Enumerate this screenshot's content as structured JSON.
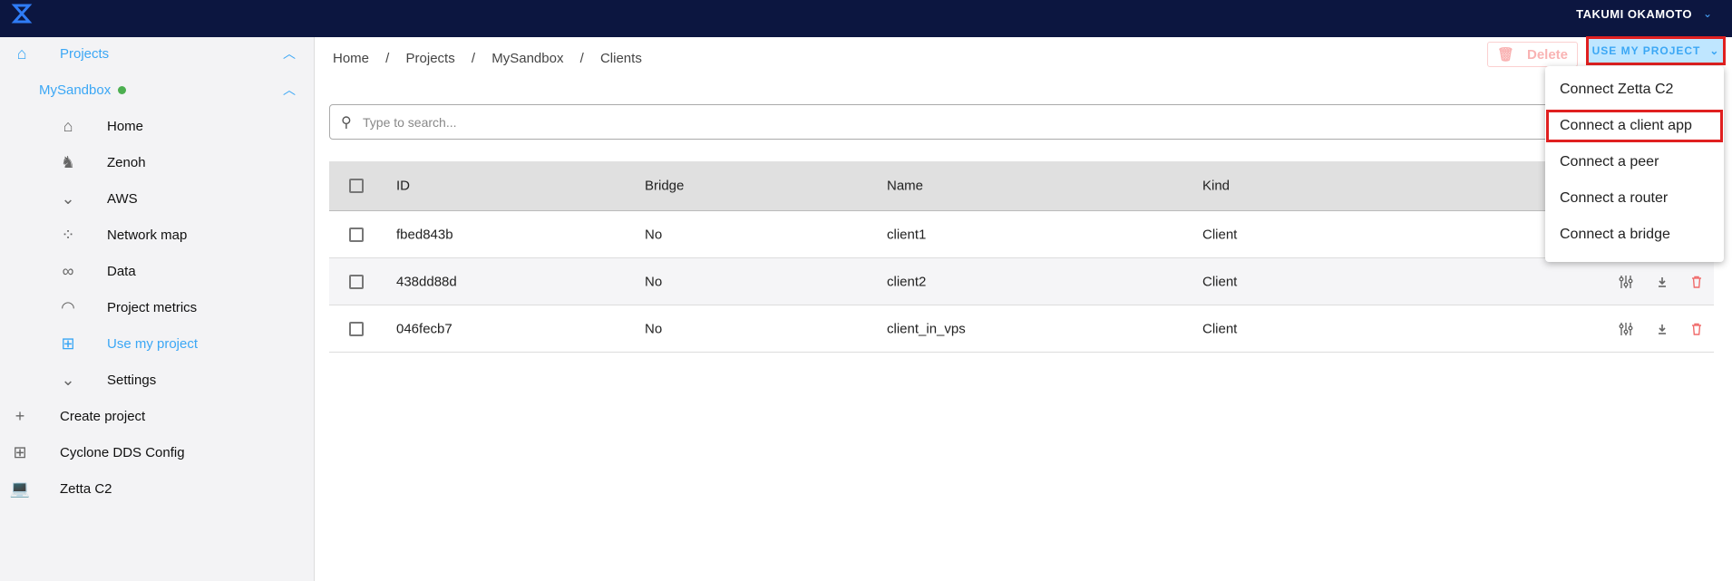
{
  "header": {
    "user": "TAKUMI OKAMOTO"
  },
  "sidebar": {
    "projects": "Projects",
    "project": "MySandbox",
    "items": [
      {
        "label": "Home",
        "icon": "home-icon"
      },
      {
        "label": "Zenoh",
        "icon": "zenoh-dragon-icon"
      },
      {
        "label": "AWS",
        "icon": "chevron-down-icon"
      },
      {
        "label": "Network map",
        "icon": "network-icon"
      },
      {
        "label": "Data",
        "icon": "data-icon"
      },
      {
        "label": "Project metrics",
        "icon": "gauge-icon"
      },
      {
        "label": "Use my project",
        "icon": "add-box-icon"
      },
      {
        "label": "Settings",
        "icon": "chevron-down-icon"
      }
    ],
    "bottom": [
      {
        "label": "Create project",
        "icon": "plus-icon"
      },
      {
        "label": "Cyclone DDS Config",
        "icon": "add-box-icon"
      },
      {
        "label": "Zetta C2",
        "icon": "laptop-icon"
      }
    ]
  },
  "breadcrumb": [
    "Home",
    "Projects",
    "MySandbox",
    "Clients"
  ],
  "toolbar": {
    "delete": "Delete",
    "use_my_project": "USE MY PROJECT"
  },
  "search": {
    "placeholder": "Type to search..."
  },
  "table": {
    "headers": [
      "ID",
      "Bridge",
      "Name",
      "Kind"
    ],
    "rows": [
      [
        "fbed843b",
        "No",
        "client1",
        "Client"
      ],
      [
        "438dd88d",
        "No",
        "client2",
        "Client"
      ],
      [
        "046fecb7",
        "No",
        "client_in_vps",
        "Client"
      ]
    ]
  },
  "menu": [
    "Connect Zetta C2",
    "Connect a client app",
    "Connect a peer",
    "Connect a router",
    "Connect a bridge"
  ],
  "colors": {
    "accent": "#3ba7f5",
    "topbar": "#0c1640",
    "highlight": "#e02020"
  }
}
